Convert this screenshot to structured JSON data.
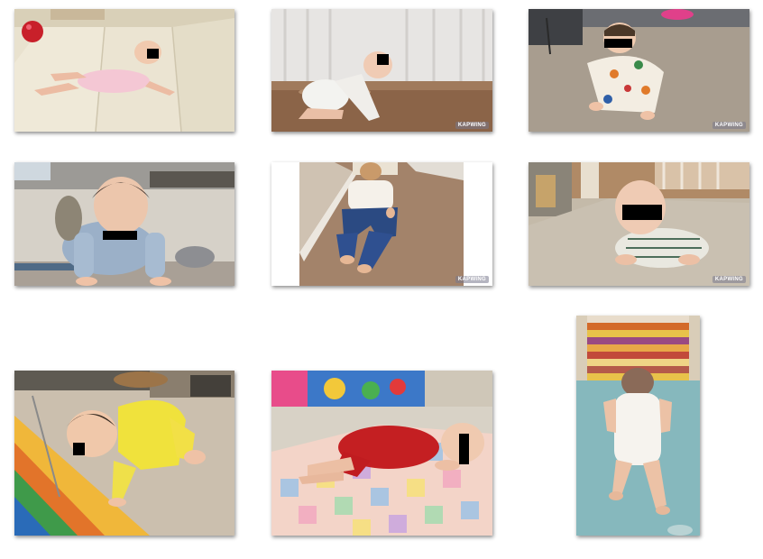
{
  "photos": [
    {
      "subject": "baby-on-foam-mat-photo",
      "watermark": null
    },
    {
      "subject": "baby-crawling-wood-floor-photo",
      "watermark": "KAPWING"
    },
    {
      "subject": "baby-on-carpet-photo",
      "watermark": "KAPWING"
    },
    {
      "subject": "baby-crawling-indoors-photo",
      "watermark": null
    },
    {
      "subject": "baby-crawling-hallway-photo",
      "watermark": "KAPWING"
    },
    {
      "subject": "baby-head-down-carpet-photo",
      "watermark": "KAPWING"
    },
    {
      "subject": "baby-yellow-onesie-photo",
      "watermark": null
    },
    {
      "subject": "baby-red-outfit-quilt-photo",
      "watermark": null
    },
    {
      "subject": "baby-in-crib-photo",
      "watermark": null
    }
  ],
  "colors": {
    "background": "#ffffff",
    "privacy_bar": "#000000"
  }
}
